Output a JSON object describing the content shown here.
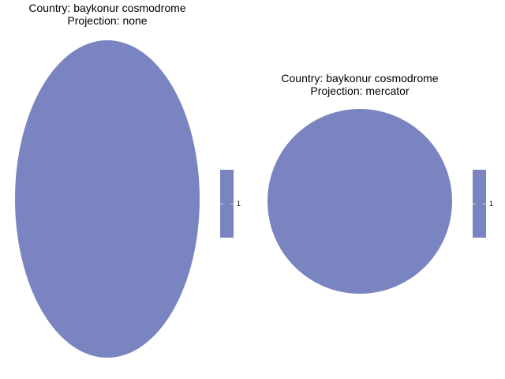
{
  "panels": [
    {
      "title_line1": "Country: baykonur cosmodrome",
      "title_line2": "Projection: none",
      "fill_color": "#7a84c1",
      "legend_value": "1"
    },
    {
      "title_line1": "Country: baykonur cosmodrome",
      "title_line2": "Projection: mercator",
      "fill_color": "#7a84c1",
      "legend_value": "1"
    }
  ]
}
